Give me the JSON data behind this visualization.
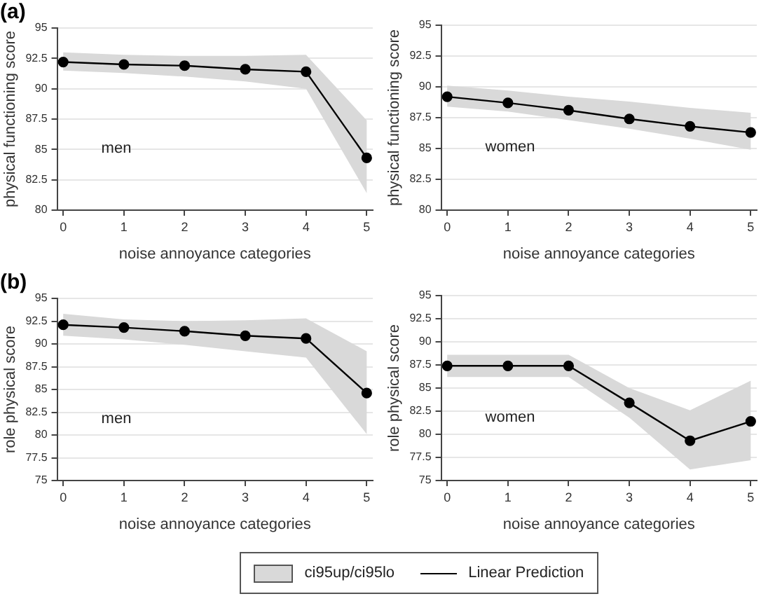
{
  "chart_data": [
    {
      "type": "line",
      "title": "(a)",
      "xlabel": "noise annoyance categories",
      "ylabel": "physical functioning score",
      "annotations": [
        "men"
      ],
      "x": [
        0,
        1,
        2,
        3,
        4,
        5
      ],
      "xlim": [
        -0.1,
        5.1
      ],
      "xticks": [
        0,
        1,
        2,
        3,
        4,
        5
      ],
      "ylim": [
        80,
        95
      ],
      "yticks": [
        80,
        82.5,
        85,
        87.5,
        90,
        92.5,
        95
      ],
      "grid": "y",
      "marker": "circle",
      "series": [
        {
          "color": "#000000",
          "values": [
            92.2,
            92.0,
            91.9,
            91.6,
            91.4,
            84.3
          ],
          "lower": [
            91.5,
            91.3,
            91.0,
            90.6,
            90.0,
            81.4
          ],
          "upper": [
            93.0,
            92.8,
            92.7,
            92.7,
            92.8,
            87.4
          ]
        }
      ]
    },
    {
      "type": "line",
      "xlabel": "noise annoyance categories",
      "ylabel": "physical functioning score",
      "annotations": [
        "women"
      ],
      "x": [
        0,
        1,
        2,
        3,
        4,
        5
      ],
      "xlim": [
        -0.1,
        5.1
      ],
      "xticks": [
        0,
        1,
        2,
        3,
        4,
        5
      ],
      "ylim": [
        80,
        95
      ],
      "yticks": [
        80,
        82.5,
        85,
        87.5,
        90,
        92.5,
        95
      ],
      "grid": "y",
      "marker": "circle",
      "series": [
        {
          "color": "#000000",
          "values": [
            89.2,
            88.7,
            88.1,
            87.4,
            86.8,
            86.3
          ],
          "lower": [
            88.4,
            88.0,
            87.3,
            86.6,
            85.8,
            84.9
          ],
          "upper": [
            90.1,
            89.7,
            89.2,
            88.8,
            88.3,
            87.9
          ]
        }
      ]
    },
    {
      "type": "line",
      "title": "(b)",
      "xlabel": "noise annoyance categories",
      "ylabel": "role physical score",
      "annotations": [
        "men"
      ],
      "x": [
        0,
        1,
        2,
        3,
        4,
        5
      ],
      "xlim": [
        -0.1,
        5.1
      ],
      "xticks": [
        0,
        1,
        2,
        3,
        4,
        5
      ],
      "ylim": [
        75,
        95
      ],
      "yticks": [
        75,
        77.5,
        80,
        82.5,
        85,
        87.5,
        90,
        92.5,
        95
      ],
      "grid": "y",
      "marker": "circle",
      "series": [
        {
          "color": "#000000",
          "values": [
            92.1,
            91.8,
            91.4,
            90.9,
            90.6,
            84.6
          ],
          "lower": [
            90.9,
            90.5,
            89.9,
            89.2,
            88.5,
            80.1
          ],
          "upper": [
            93.3,
            92.7,
            92.5,
            92.6,
            92.8,
            89.2
          ]
        }
      ]
    },
    {
      "type": "line",
      "xlabel": "noise annoyance categories",
      "ylabel": "role physical score",
      "annotations": [
        "women",
        "ci95up/ci95lo"
      ],
      "x": [
        0,
        1,
        2,
        3,
        4,
        5
      ],
      "xlim": [
        -0.1,
        5.1
      ],
      "xticks": [
        0,
        1,
        2,
        3,
        4,
        5
      ],
      "ylim": [
        75,
        95
      ],
      "yticks": [
        75,
        77.5,
        80,
        82.5,
        85,
        87.5,
        90,
        92.5,
        95
      ],
      "grid": "y",
      "marker": "circle",
      "legend": "bottom",
      "series": [
        {
          "name": "Linear Prediction",
          "color": "#000000",
          "values": [
            87.4,
            87.4,
            87.4,
            83.4,
            79.3,
            81.4
          ],
          "lower": [
            86.2,
            86.2,
            86.2,
            81.8,
            76.2,
            77.2
          ],
          "upper": [
            88.6,
            88.6,
            88.6,
            85.0,
            82.6,
            85.8
          ]
        }
      ]
    }
  ]
}
